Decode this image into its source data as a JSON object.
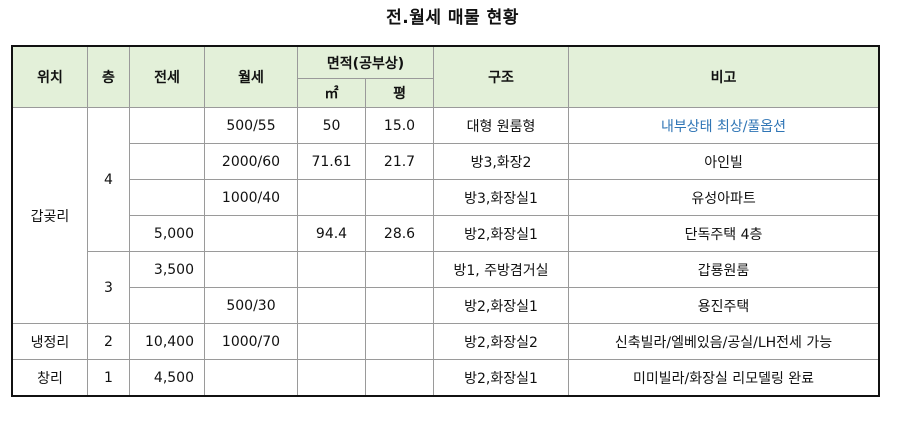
{
  "title": "전.월세 매물 현황",
  "headers": {
    "location": "위치",
    "floor": "층",
    "jeonse": "전세",
    "wolse": "월세",
    "area": "면적(공부상)",
    "area_m2": "㎡",
    "area_pyeong": "평",
    "structure": "구조",
    "note": "비고"
  },
  "groups": {
    "gapgot": "갑곶리",
    "gapgot_floor4": "4",
    "gapgot_floor3": "3",
    "naengjeong": "냉정리",
    "naengjeong_floor": "2",
    "chang": "창리",
    "chang_floor": "1"
  },
  "rows": [
    {
      "jeonse": "",
      "wolse": "500/55",
      "m2": "50",
      "pyeong": "15.0",
      "structure": "대형 원룸형",
      "note": "내부상태 최상/풀옵션",
      "note_color": "#2f75b5"
    },
    {
      "jeonse": "",
      "wolse": "2000/60",
      "m2": "71.61",
      "pyeong": "21.7",
      "structure": "방3,화장2",
      "note": "아인빌"
    },
    {
      "jeonse": "",
      "wolse": "1000/40",
      "m2": "",
      "pyeong": "",
      "structure": "방3,화장실1",
      "note": "유성아파트"
    },
    {
      "jeonse": "5,000",
      "wolse": "",
      "m2": "94.4",
      "pyeong": "28.6",
      "structure": "방2,화장실1",
      "note": "단독주택 4층"
    },
    {
      "jeonse": "3,500",
      "wolse": "",
      "m2": "",
      "pyeong": "",
      "structure": "방1, 주방겸거실",
      "note": "갑룡원룸"
    },
    {
      "jeonse": "",
      "wolse": "500/30",
      "m2": "",
      "pyeong": "",
      "structure": "방2,화장실1",
      "note": "용진주택"
    },
    {
      "jeonse": "10,400",
      "wolse": "1000/70",
      "m2": "",
      "pyeong": "",
      "structure": "방2,화장실2",
      "note": "신축빌라/엘베있음/공실/LH전세 가능"
    },
    {
      "jeonse": "4,500",
      "wolse": "",
      "m2": "",
      "pyeong": "",
      "structure": "방2,화장실1",
      "note": "미미빌라/화장실 리모델링 완료"
    }
  ]
}
